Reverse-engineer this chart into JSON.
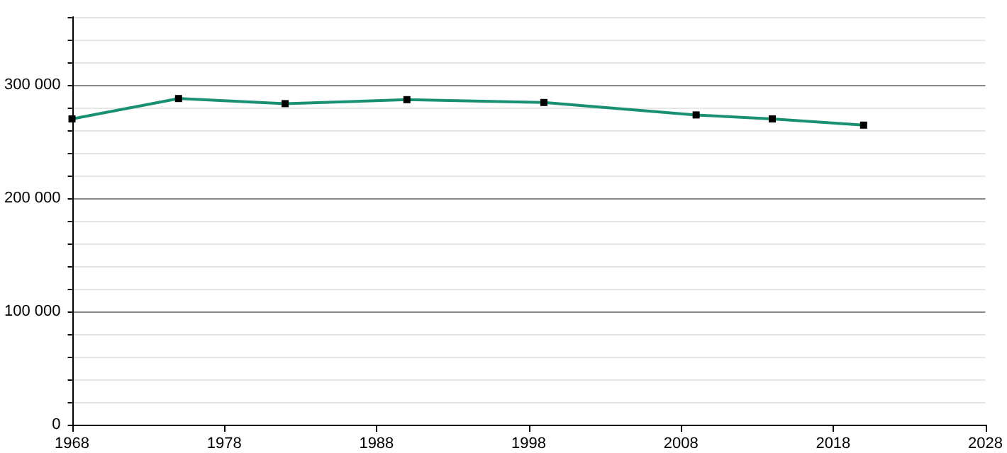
{
  "chart_data": {
    "type": "line",
    "x": [
      1968,
      1975,
      1982,
      1990,
      1999,
      2009,
      2014,
      2020
    ],
    "series": [
      {
        "color": "#1a9072",
        "values": [
          270000,
          288000,
          283500,
          287000,
          284500,
          273500,
          270000,
          264500
        ]
      }
    ],
    "xlim": [
      1968,
      2028
    ],
    "xticks": [
      1968,
      1978,
      1988,
      1998,
      2008,
      2018,
      2028
    ],
    "ylim": [
      0,
      360000
    ],
    "yticks": [
      {
        "value": 0,
        "label": "0"
      },
      {
        "value": 20000,
        "label": null
      },
      {
        "value": 40000,
        "label": null
      },
      {
        "value": 60000,
        "label": null
      },
      {
        "value": 80000,
        "label": null
      },
      {
        "value": 100000,
        "label": "100 000"
      },
      {
        "value": 120000,
        "label": null
      },
      {
        "value": 140000,
        "label": null
      },
      {
        "value": 160000,
        "label": null
      },
      {
        "value": 180000,
        "label": null
      },
      {
        "value": 200000,
        "label": "200 000"
      },
      {
        "value": 220000,
        "label": null
      },
      {
        "value": 240000,
        "label": null
      },
      {
        "value": 260000,
        "label": null
      },
      {
        "value": 280000,
        "label": null
      },
      {
        "value": 300000,
        "label": "300 000"
      },
      {
        "value": 320000,
        "label": null
      },
      {
        "value": 340000,
        "label": null
      },
      {
        "value": 360000,
        "label": null
      }
    ],
    "grid": "y",
    "marker": "square",
    "line_style": "solid"
  }
}
